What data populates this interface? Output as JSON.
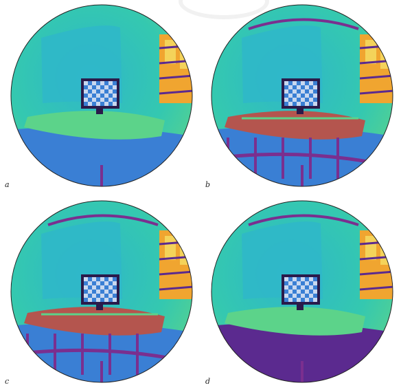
{
  "figure": {
    "panels": [
      {
        "label": "a",
        "variant": "base"
      },
      {
        "label": "b",
        "variant": "banded"
      },
      {
        "label": "c",
        "variant": "banded-bright"
      },
      {
        "label": "d",
        "variant": "smooth"
      }
    ],
    "colors": {
      "cyan": "#2fb7c9",
      "teal": "#34c8b0",
      "green": "#5cd38a",
      "blue": "#3a7fd4",
      "purple": "#5b2a8f",
      "magenta": "#7a2f8f",
      "red": "#b4554e",
      "orange": "#f0a530",
      "yellow": "#f4d35a",
      "dark": "#2a1a4a"
    },
    "icons": [
      "fisheye-room-image",
      "checkerboard-target"
    ]
  }
}
